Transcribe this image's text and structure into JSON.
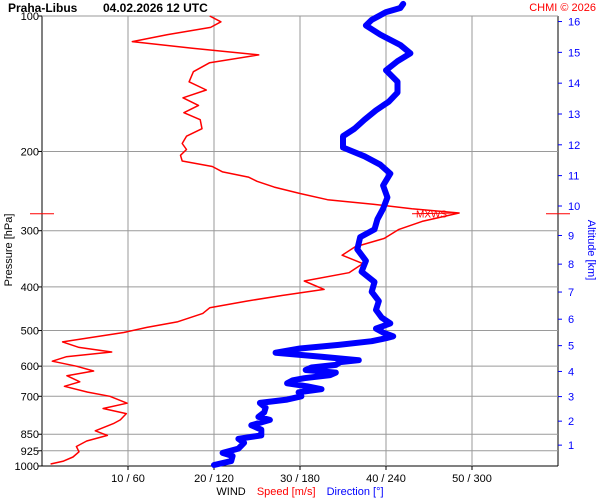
{
  "chart_data": {
    "type": "line",
    "title": "Praha-Libus",
    "subtitle": "04.02.2026 12 UTC",
    "credit": "CHMI © 2026",
    "ylabel_left": "Pressure [hPa]",
    "ylabel_right": "Altitude [km]",
    "xlabel_parts": [
      "WIND",
      "Speed [m/s]",
      "Direction [°]"
    ],
    "pressure_ticks": [
      "100",
      "200",
      "300",
      "400",
      "500",
      "600",
      "700",
      "850",
      "925",
      "1000"
    ],
    "altitude_ticks": [
      "1",
      "2",
      "3",
      "4",
      "5",
      "6",
      "7",
      "8",
      "9",
      "10",
      "11",
      "12",
      "13",
      "14",
      "15",
      "16"
    ],
    "x_ticks": [
      "10 / 60",
      "20 / 120",
      "30 / 180",
      "40 / 240",
      "50 / 300"
    ],
    "x_range_speed": [
      0,
      60
    ],
    "x_range_direction": [
      0,
      360
    ],
    "y_scale": "log",
    "y_range_hpa": [
      1000,
      100
    ],
    "grid": true,
    "mxws_label": "MXWS",
    "mxws_level_hpa": 275,
    "colors": {
      "speed": "#ff0000",
      "direction": "#0000ff",
      "grid": "#9a9a9a",
      "axis": "#000000",
      "title": "#000000",
      "credit": "#ff0000"
    },
    "series": [
      {
        "name": "Speed [m/s]",
        "unit": "m/s",
        "points": [
          [
            1.0,
            990
          ],
          [
            2.5,
            975
          ],
          [
            3.6,
            955
          ],
          [
            4.3,
            930
          ],
          [
            4.0,
            905
          ],
          [
            5.2,
            880
          ],
          [
            7.6,
            855
          ],
          [
            6.2,
            835
          ],
          [
            8.3,
            805
          ],
          [
            9.1,
            790
          ],
          [
            9.8,
            765
          ],
          [
            7.1,
            745
          ],
          [
            9.9,
            725
          ],
          [
            7.9,
            700
          ],
          [
            5.3,
            685
          ],
          [
            2.6,
            665
          ],
          [
            4.4,
            650
          ],
          [
            2.9,
            630
          ],
          [
            6.0,
            615
          ],
          [
            4.0,
            600
          ],
          [
            1.2,
            585
          ],
          [
            2.8,
            572
          ],
          [
            8.1,
            558
          ],
          [
            4.3,
            545
          ],
          [
            2.4,
            530
          ],
          [
            5.8,
            518
          ],
          [
            9.5,
            505
          ],
          [
            12.2,
            492
          ],
          [
            15.8,
            478
          ],
          [
            18.7,
            458
          ],
          [
            19.5,
            445
          ],
          [
            23.8,
            430
          ],
          [
            27.9,
            418
          ],
          [
            32.8,
            405
          ],
          [
            30.5,
            388
          ],
          [
            35.7,
            372
          ],
          [
            37.3,
            355
          ],
          [
            34.9,
            340
          ],
          [
            36.4,
            326
          ],
          [
            39.8,
            312
          ],
          [
            41.5,
            298
          ],
          [
            44.2,
            286
          ],
          [
            48.5,
            274
          ],
          [
            43.0,
            268
          ],
          [
            38.5,
            262
          ],
          [
            33.2,
            256
          ],
          [
            30.0,
            248
          ],
          [
            27.0,
            240
          ],
          [
            25.0,
            233
          ],
          [
            24.0,
            228
          ],
          [
            21.0,
            222
          ],
          [
            19.8,
            216
          ],
          [
            16.3,
            210
          ],
          [
            16.1,
            204
          ],
          [
            16.8,
            198
          ],
          [
            16.3,
            192
          ],
          [
            16.8,
            185
          ],
          [
            18.6,
            178
          ],
          [
            18.4,
            170
          ],
          [
            16.5,
            164
          ],
          [
            18.2,
            158
          ],
          [
            16.4,
            152
          ],
          [
            19.1,
            146
          ],
          [
            17.1,
            140
          ],
          [
            17.6,
            133
          ],
          [
            19.5,
            127
          ],
          [
            25.2,
            122
          ],
          [
            17.5,
            118
          ],
          [
            10.5,
            114
          ],
          [
            14.6,
            110
          ],
          [
            19.6,
            106
          ],
          [
            20.8,
            103
          ],
          [
            19.5,
            100
          ]
        ]
      },
      {
        "name": "Direction [°]",
        "unit": "degrees",
        "points": [
          [
            120,
            995
          ],
          [
            132,
            975
          ],
          [
            133,
            950
          ],
          [
            126,
            935
          ],
          [
            137,
            915
          ],
          [
            141,
            888
          ],
          [
            137,
            870
          ],
          [
            153,
            855
          ],
          [
            153,
            830
          ],
          [
            146,
            812
          ],
          [
            159,
            790
          ],
          [
            151,
            778
          ],
          [
            155,
            760
          ],
          [
            156,
            742
          ],
          [
            152,
            724
          ],
          [
            171,
            712
          ],
          [
            181,
            700
          ],
          [
            179,
            686
          ],
          [
            195,
            675
          ],
          [
            185,
            665
          ],
          [
            171,
            655
          ],
          [
            175,
            645
          ],
          [
            183,
            638
          ],
          [
            201,
            628
          ],
          [
            205,
            620
          ],
          [
            184,
            612
          ],
          [
            188,
            604
          ],
          [
            205,
            596
          ],
          [
            208,
            588
          ],
          [
            221,
            582
          ],
          [
            195,
            572
          ],
          [
            163,
            560
          ],
          [
            180,
            548
          ],
          [
            207,
            538
          ],
          [
            230,
            528
          ],
          [
            240,
            520
          ],
          [
            245,
            515
          ],
          [
            238,
            505
          ],
          [
            233,
            495
          ],
          [
            243,
            482
          ],
          [
            237,
            468
          ],
          [
            233,
            450
          ],
          [
            235,
            430
          ],
          [
            230,
            410
          ],
          [
            232,
            390
          ],
          [
            223,
            370
          ],
          [
            226,
            350
          ],
          [
            220,
            330
          ],
          [
            222,
            310
          ],
          [
            232,
            298
          ],
          [
            234,
            283
          ],
          [
            238,
            268
          ],
          [
            241,
            253
          ],
          [
            238,
            238
          ],
          [
            243,
            224
          ],
          [
            236,
            214
          ],
          [
            225,
            205
          ],
          [
            210,
            196
          ],
          [
            210,
            185
          ],
          [
            218,
            178
          ],
          [
            225,
            170
          ],
          [
            233,
            162
          ],
          [
            242,
            155
          ],
          [
            248,
            148
          ],
          [
            248,
            140
          ],
          [
            240,
            132
          ],
          [
            248,
            126
          ],
          [
            257,
            121
          ],
          [
            250,
            116
          ],
          [
            236,
            110
          ],
          [
            226,
            105
          ],
          [
            230,
            102
          ],
          [
            240,
            98
          ],
          [
            250,
            96
          ],
          [
            252,
            94
          ]
        ]
      }
    ]
  }
}
